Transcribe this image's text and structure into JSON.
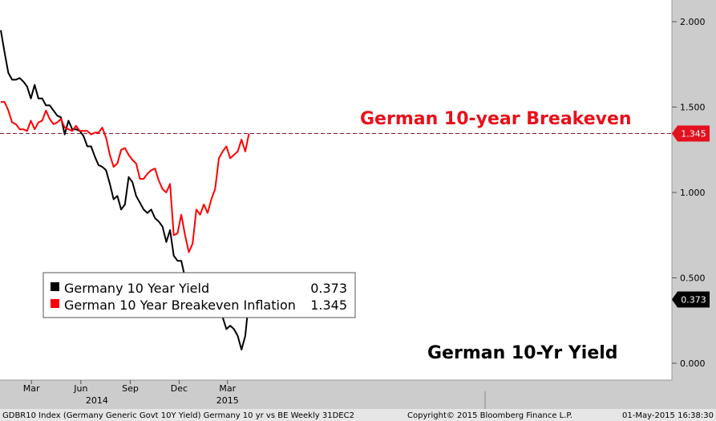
{
  "chart_data": {
    "type": "line",
    "title": "",
    "xlabel": "",
    "ylabel": "",
    "ylim": [
      0.0,
      2.0
    ],
    "y_ticks": [
      "2.000",
      "1.500",
      "1.000",
      "0.500",
      "0.000"
    ],
    "x_month_ticks": [
      {
        "label": "Mar",
        "date": "2014-03-01"
      },
      {
        "label": "Jun",
        "date": "2014-06-01"
      },
      {
        "label": "Sep",
        "date": "2014-09-01"
      },
      {
        "label": "Dec",
        "date": "2014-12-01"
      },
      {
        "label": "Mar",
        "date": "2015-03-01"
      }
    ],
    "x_year_ticks": [
      {
        "label": "2014",
        "date": "2014-07-01"
      },
      {
        "label": "2015",
        "date": "2015-03-01"
      }
    ],
    "x_start": "2014-01-03",
    "frequency": "weekly",
    "series": [
      {
        "name": "Germany 10 Year Yield",
        "color": "#000000",
        "last": "0.373",
        "values": [
          1.95,
          1.82,
          1.7,
          1.66,
          1.66,
          1.67,
          1.65,
          1.62,
          1.55,
          1.63,
          1.55,
          1.55,
          1.51,
          1.51,
          1.48,
          1.45,
          1.44,
          1.34,
          1.42,
          1.37,
          1.37,
          1.36,
          1.33,
          1.27,
          1.27,
          1.21,
          1.16,
          1.15,
          1.13,
          1.05,
          0.96,
          0.98,
          0.9,
          0.93,
          1.09,
          1.06,
          0.98,
          0.94,
          0.9,
          0.88,
          0.9,
          0.85,
          0.83,
          0.8,
          0.71,
          0.78,
          0.63,
          0.6,
          0.6,
          0.5,
          0.49,
          0.46,
          0.36,
          0.31,
          0.38,
          0.34,
          0.37,
          0.33,
          0.37,
          0.27,
          0.2,
          0.22,
          0.2,
          0.16,
          0.08,
          0.16,
          0.373
        ]
      },
      {
        "name": "German 10 Year Breakeven Inflation",
        "color": "#ff0000",
        "last": "1.345",
        "values": [
          1.53,
          1.53,
          1.48,
          1.41,
          1.4,
          1.37,
          1.37,
          1.36,
          1.42,
          1.37,
          1.41,
          1.42,
          1.48,
          1.43,
          1.4,
          1.41,
          1.43,
          1.38,
          1.37,
          1.36,
          1.39,
          1.36,
          1.36,
          1.36,
          1.34,
          1.35,
          1.35,
          1.38,
          1.32,
          1.22,
          1.15,
          1.17,
          1.25,
          1.26,
          1.22,
          1.19,
          1.17,
          1.08,
          1.08,
          1.11,
          1.13,
          1.14,
          1.07,
          1.02,
          1.0,
          1.05,
          0.75,
          0.76,
          0.87,
          0.75,
          0.65,
          0.7,
          0.9,
          0.87,
          0.93,
          0.88,
          0.96,
          1.02,
          1.2,
          1.24,
          1.27,
          1.2,
          1.22,
          1.24,
          1.31,
          1.24,
          1.345
        ]
      }
    ],
    "reference_line": {
      "value": 1.345,
      "style": "dashed",
      "color": "#8b1a2b"
    },
    "legend": {
      "position": "left",
      "entries": [
        {
          "label": "Germany 10 Year Yield",
          "value": "0.373",
          "color": "#000000"
        },
        {
          "label": "German 10 Year Breakeven Inflation",
          "value": "1.345",
          "color": "#ff0000"
        }
      ]
    },
    "annotations": [
      {
        "text": "German 10-year Breakeven",
        "color": "#e8101a"
      },
      {
        "text": "German 10-Yr Yield",
        "color": "#000000"
      }
    ],
    "value_badges": [
      {
        "text": "1.345",
        "value": 1.345,
        "color": "#e4101e"
      },
      {
        "text": "0.373",
        "value": 0.373,
        "color": "#000000"
      }
    ],
    "grid": false
  },
  "footer": {
    "left": "GDBR10 Index (Germany Generic Govt 10Y Yield) Germany 10 yr vs BE  Weekly 31DEC2",
    "center": "Copyright© 2015 Bloomberg Finance L.P.",
    "right": "01-May-2015 16:38:30"
  }
}
